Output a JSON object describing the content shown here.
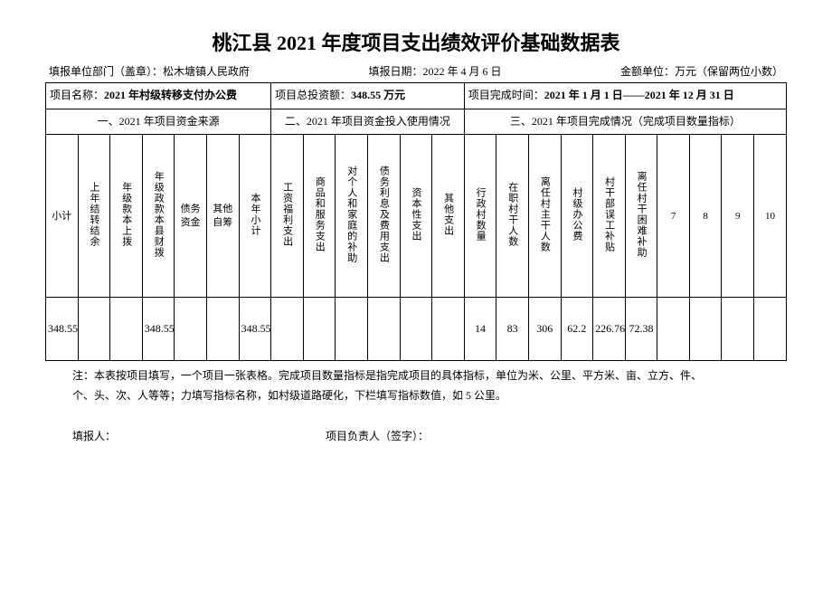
{
  "title": "桃江县 2021 年度项目支出绩效评价基础数据表",
  "meta": {
    "dept_label": "填报单位部门（盖章）：",
    "dept_value": "松木塘镇人民政府",
    "date_label": "填报日期：",
    "date_value": "2022 年 4 月 6 日",
    "unit_label": "金额单位：万元（保留两位小数）"
  },
  "info": {
    "project_name_label": "项目名称：",
    "project_name_value": "2021 年村级转移支付办公费",
    "total_invest_label": "项目总投资额：",
    "total_invest_value": "348.55 万元",
    "complete_time_label": "项目完成时间：",
    "complete_time_value": "2021 年 1 月 1 日——2021 年 12 月 31 日"
  },
  "sections": {
    "s1": "一、2021 年项目资金来源",
    "s2": "二、2021 年项目资金投入使用情况",
    "s3": "三、2021 年项目完成情况（完成项目数量指标）"
  },
  "cols": {
    "c1": "小计",
    "c2": "上年结转结余",
    "c3": "年级款本上拨",
    "c4": "年级政款本县财拨",
    "c5": "债务资金",
    "c6": "其他自筹",
    "c7": "本年小计",
    "c8": "工资福利支出",
    "c9": "商品和服务支出",
    "c10": "对个人和家庭的补助",
    "c11": "债务利息及费用支出",
    "c12": "资本性支出",
    "c13": "其他支出",
    "c14": "行政村数量",
    "c15": "在职村干人数",
    "c16": "离任村主干人数",
    "c17": "村级办公费",
    "c18": "村干部误工补贴",
    "c19": "离任村干困难补助",
    "c20": "7",
    "c21": "8",
    "c22": "9",
    "c23": "10"
  },
  "data": {
    "d1": "348.55",
    "d2": "",
    "d3": "",
    "d4": "348.55",
    "d5": "",
    "d6": "",
    "d7": "348.55",
    "d8": "",
    "d9": "",
    "d10": "",
    "d11": "",
    "d12": "",
    "d13": "",
    "d14": "14",
    "d15": "83",
    "d16": "306",
    "d17": "62.2",
    "d18": "226.76",
    "d19": "72.38",
    "d20": "",
    "d21": "",
    "d22": "",
    "d23": ""
  },
  "notes": {
    "label": "注：",
    "line1": "本表按项目填写，一个项目一张表格。完成项目数量指标是指完成项目的具体指标，单位为米、公里、平方米、亩、立方、件、",
    "line2": "个、头、次、人等等；力填写指标名称，如村级道路硬化，下栏填写指标数值，如 5 公里。"
  },
  "sign": {
    "reporter": "填报人：",
    "leader": "项目负责人（签字）："
  }
}
